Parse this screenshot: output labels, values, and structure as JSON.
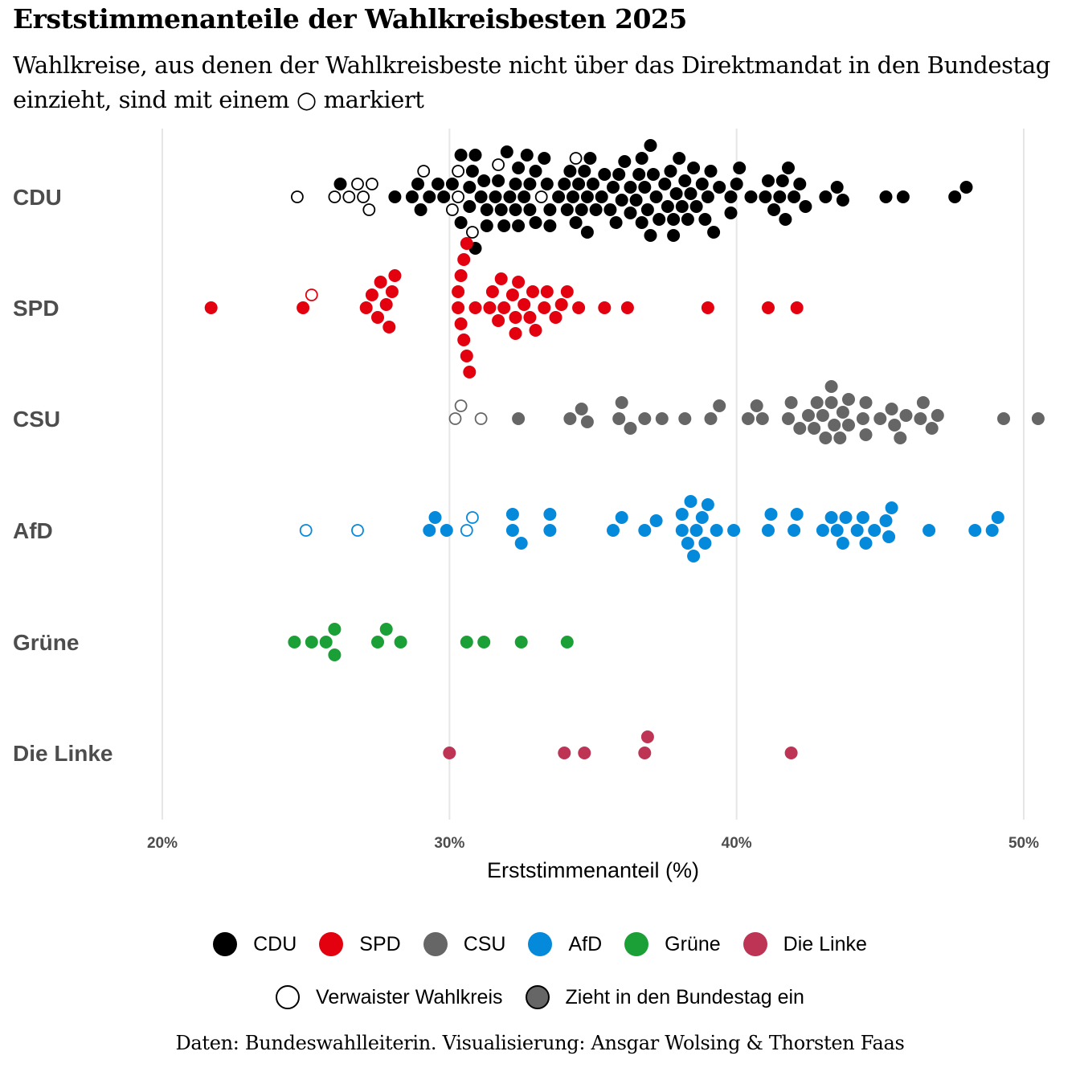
{
  "title": "Erststimmenanteile der Wahlkreisbesten 2025",
  "subtitle": "Wahlkreise, aus denen der Wahlkreisbeste nicht über das Direktmandat in den Bundestag einzieht, sind mit einem ○ markiert",
  "caption": "Daten: Bundeswahlleiterin. Visualisierung: Ansgar Wolsing & Thorsten Faas",
  "legend": {
    "parties": [
      {
        "name": "CDU",
        "color": "#000000"
      },
      {
        "name": "SPD",
        "color": "#e3000f"
      },
      {
        "name": "CSU",
        "color": "#666666"
      },
      {
        "name": "AfD",
        "color": "#0489db"
      },
      {
        "name": "Grüne",
        "color": "#1aa037"
      },
      {
        "name": "Die Linke",
        "color": "#be3455"
      }
    ],
    "status": [
      {
        "name": "Verwaister Wahlkreis",
        "style": "hollow"
      },
      {
        "name": "Zieht in den Bundestag ein",
        "style": "filled"
      }
    ]
  },
  "chart_data": {
    "type": "scatter",
    "subtype": "beeswarm",
    "xlabel": "Erststimmenanteil (%)",
    "xlim": [
      17,
      50.6
    ],
    "xticks": [
      20,
      30,
      40,
      50
    ],
    "xtick_labels": [
      "20%",
      "30%",
      "40%",
      "50%"
    ],
    "grid": "vertical major",
    "legend_position": "bottom",
    "series": [
      {
        "name": "CDU",
        "color": "#000000",
        "orphaned": [
          24.7,
          26.0,
          26.5,
          26.8,
          27.0,
          27.2,
          27.3,
          29.1,
          30.1,
          30.3,
          30.3,
          30.8,
          31.7,
          33.2,
          34.4
        ],
        "values": [
          26.2,
          28.1,
          28.7,
          28.9,
          29.0,
          29.3,
          29.6,
          29.8,
          30.1,
          30.4,
          30.4,
          30.7,
          30.7,
          30.8,
          30.9,
          30.9,
          31.1,
          31.2,
          31.3,
          31.3,
          31.6,
          31.7,
          31.8,
          31.9,
          32.0,
          32.1,
          32.3,
          32.3,
          32.4,
          32.4,
          32.6,
          32.7,
          32.8,
          32.8,
          33.0,
          33.0,
          33.3,
          33.4,
          33.5,
          33.5,
          33.8,
          34.0,
          34.1,
          34.2,
          34.3,
          34.4,
          34.5,
          34.6,
          34.7,
          34.8,
          34.8,
          34.9,
          35.0,
          35.1,
          35.3,
          35.4,
          35.6,
          35.7,
          35.8,
          35.9,
          36.0,
          36.1,
          36.3,
          36.3,
          36.5,
          36.6,
          36.7,
          36.7,
          36.8,
          36.9,
          37.0,
          37.0,
          37.1,
          37.2,
          37.3,
          37.5,
          37.6,
          37.7,
          37.8,
          37.8,
          37.9,
          38.0,
          38.1,
          38.2,
          38.3,
          38.4,
          38.5,
          38.6,
          38.8,
          38.9,
          39.0,
          39.1,
          39.2,
          39.4,
          39.8,
          39.8,
          40.0,
          40.1,
          40.5,
          41.0,
          41.1,
          41.3,
          41.5,
          41.6,
          41.7,
          41.8,
          42.0,
          42.2,
          42.4,
          43.1,
          43.5,
          43.7,
          45.2,
          45.8,
          47.6,
          48.0
        ],
        "_note_all_filled": "Zieht in den Bundestag ein"
      },
      {
        "name": "SPD",
        "color": "#e3000f",
        "orphaned": [
          25.2
        ],
        "values": [
          21.7,
          24.9,
          27.1,
          27.3,
          27.5,
          27.6,
          27.8,
          27.9,
          28.0,
          28.1,
          30.3,
          30.3,
          30.4,
          30.4,
          30.5,
          30.5,
          30.6,
          30.6,
          30.7,
          30.9,
          31.4,
          31.5,
          31.7,
          31.8,
          31.9,
          32.2,
          32.3,
          32.3,
          32.4,
          32.6,
          32.8,
          32.9,
          33.0,
          33.3,
          33.4,
          33.7,
          33.9,
          34.1,
          34.5,
          35.4,
          36.2,
          39.0,
          41.1,
          42.1
        ]
      },
      {
        "name": "CSU",
        "color": "#666666",
        "orphaned": [
          30.2,
          30.4,
          31.1
        ],
        "values": [
          32.4,
          34.2,
          34.6,
          34.8,
          35.9,
          36.0,
          36.3,
          36.8,
          37.4,
          38.2,
          39.1,
          39.4,
          40.4,
          40.7,
          40.9,
          41.8,
          41.9,
          42.2,
          42.5,
          42.7,
          42.8,
          43.0,
          43.1,
          43.3,
          43.3,
          43.4,
          43.6,
          43.7,
          43.9,
          43.9,
          44.4,
          44.5,
          44.5,
          45.0,
          45.4,
          45.5,
          45.7,
          45.9,
          46.4,
          46.5,
          46.8,
          47.0,
          49.3,
          50.5
        ]
      },
      {
        "name": "AfD",
        "color": "#0489db",
        "orphaned": [
          25.0,
          26.8,
          30.6,
          30.8
        ],
        "values": [
          29.3,
          29.5,
          29.9,
          32.2,
          32.2,
          32.5,
          33.5,
          33.5,
          35.7,
          36.0,
          36.8,
          37.2,
          38.1,
          38.1,
          38.3,
          38.4,
          38.5,
          38.6,
          38.8,
          38.9,
          39.0,
          39.3,
          39.9,
          41.1,
          41.2,
          42.0,
          42.1,
          43.0,
          43.3,
          43.5,
          43.7,
          43.8,
          44.2,
          44.4,
          44.5,
          44.8,
          45.2,
          45.3,
          45.4,
          46.7,
          48.3,
          48.9,
          49.1
        ]
      },
      {
        "name": "Grüne",
        "color": "#1aa037",
        "orphaned": [],
        "values": [
          24.6,
          25.2,
          25.7,
          26.0,
          26.0,
          27.5,
          27.8,
          28.3,
          30.6,
          31.2,
          32.5,
          34.1
        ]
      },
      {
        "name": "Die Linke",
        "color": "#be3455",
        "orphaned": [],
        "values": [
          30.0,
          34.0,
          34.7,
          36.8,
          36.9,
          41.9
        ]
      }
    ]
  }
}
